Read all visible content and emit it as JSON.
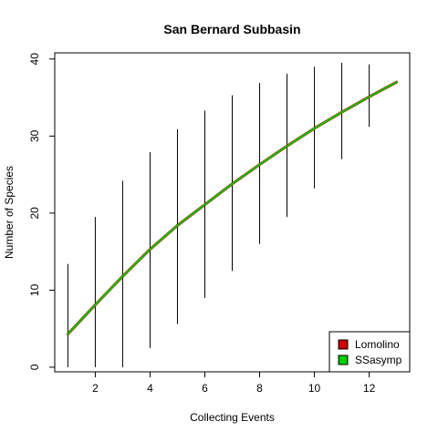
{
  "chart_data": {
    "type": "line",
    "title": "San Bernard Subbasin",
    "xlabel": "Collecting Events",
    "ylabel": "Number of Species",
    "xlim": [
      0.52,
      13.48
    ],
    "ylim": [
      -0.6,
      40.8
    ],
    "x_ticks": [
      2,
      4,
      6,
      8,
      10,
      12
    ],
    "y_ticks": [
      0,
      10,
      20,
      30,
      40
    ],
    "grid": false,
    "legend_position": "bottom-right",
    "x": [
      1,
      2,
      3,
      4,
      5,
      6,
      7,
      8,
      9,
      10,
      11,
      12,
      13
    ],
    "series": [
      {
        "name": "Lomolino",
        "color": "#cc0000",
        "values": [
          4.3,
          8.1,
          11.8,
          15.3,
          18.4,
          21.1,
          23.8,
          26.3,
          28.7,
          31.0,
          33.1,
          35.1,
          37.0
        ]
      },
      {
        "name": "SSasymp",
        "color": "#00cc00",
        "values": [
          4.3,
          8.1,
          11.8,
          15.3,
          18.4,
          21.1,
          23.8,
          26.3,
          28.7,
          31.0,
          33.1,
          35.1,
          37.0
        ]
      }
    ],
    "error_bars": {
      "color": "#000000",
      "x": [
        1,
        2,
        3,
        4,
        5,
        6,
        7,
        8,
        9,
        10,
        11,
        12,
        13
      ],
      "lower": [
        0,
        0,
        0,
        2.5,
        5.6,
        9.0,
        12.5,
        16.0,
        19.5,
        23.2,
        27.0,
        31.2,
        37.0
      ],
      "upper": [
        13.4,
        19.5,
        24.2,
        27.9,
        30.9,
        33.3,
        35.3,
        36.9,
        38.1,
        39.0,
        39.5,
        39.3,
        37.0
      ]
    }
  }
}
